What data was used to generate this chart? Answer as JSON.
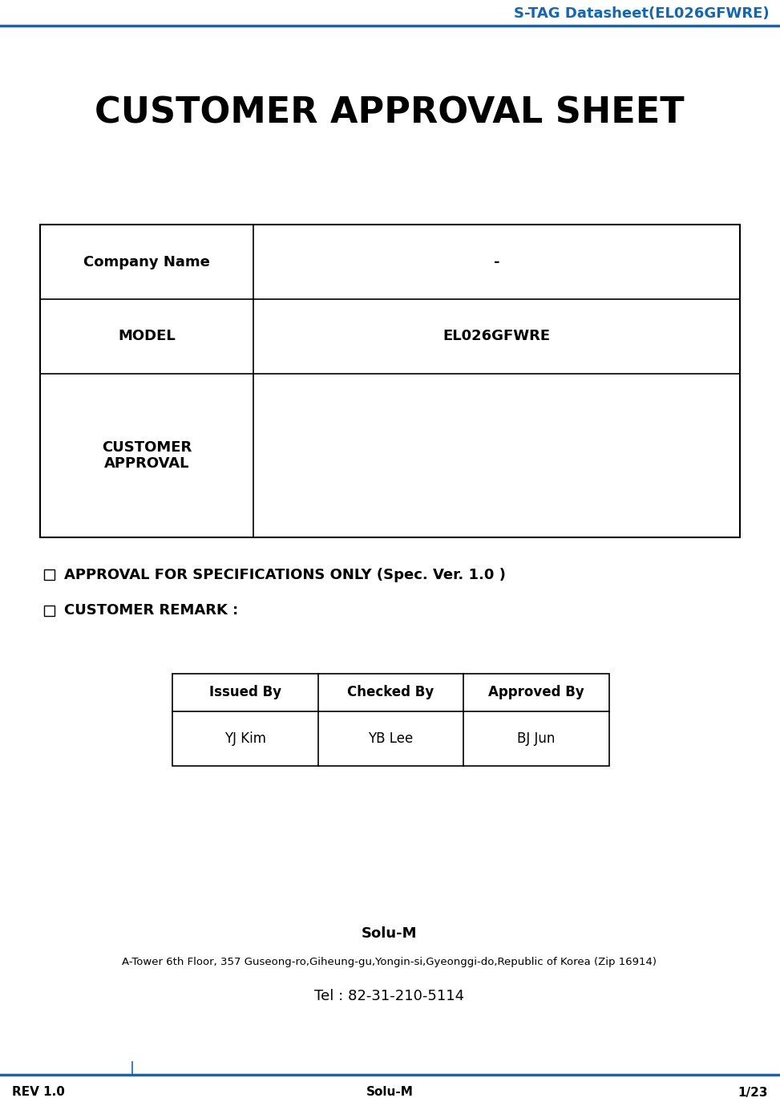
{
  "header_title": "S-TAG Datasheet(EL026GFWRE)",
  "header_color": "#1167b1",
  "header_line_color": "#1167b1",
  "main_title": "CUSTOMER APPROVAL SHEET",
  "table_rows": [
    {
      "label": "Company Name",
      "value": "-"
    },
    {
      "label": "MODEL",
      "value": "EL026GFWRE"
    },
    {
      "label": "CUSTOMER\nAPPROVAL",
      "value": ""
    }
  ],
  "checkbox_items": [
    "APPROVAL FOR SPECIFICATIONS ONLY (Spec. Ver. 1.0 )",
    "CUSTOMER REMARK :"
  ],
  "approval_headers": [
    "Issued By",
    "Checked By",
    "Approved By"
  ],
  "approval_values": [
    "YJ Kim",
    "YB Lee",
    "BJ Jun"
  ],
  "footer_company": "Solu-M",
  "footer_address": "A-Tower 6th Floor, 357 Guseong-ro,Giheung-gu,Yongin-si,Gyeonggi-do,Republic of Korea (Zip 16914)",
  "footer_tel": "Tel : 82-31-210-5114",
  "footer_left": "REV 1.0",
  "footer_center": "Solu-M",
  "footer_right": "1/23",
  "footer_line_color": "#1167b1",
  "text_color": "#000000",
  "table_border_color": "#000000"
}
